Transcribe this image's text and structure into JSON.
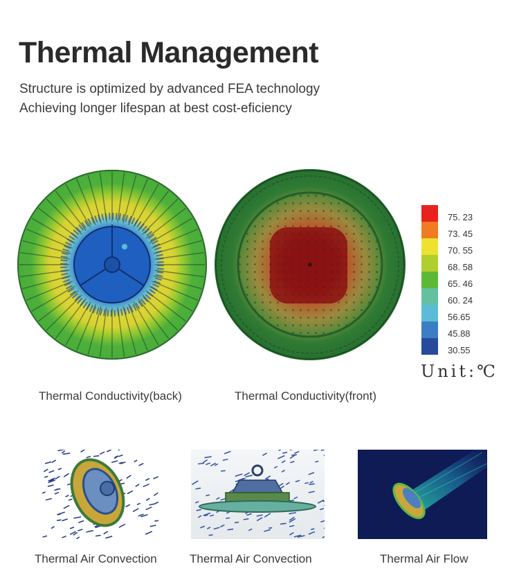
{
  "header": {
    "title": "Thermal Management",
    "subtitle_line1": "Structure is optimized by advanced FEA technology",
    "subtitle_line2": "Achieving longer lifespan at best cost-eficiency"
  },
  "legend": {
    "entries": [
      {
        "label": "75. 23",
        "color": "#e8231e"
      },
      {
        "label": "73. 45",
        "color": "#f27a20"
      },
      {
        "label": "70. 55",
        "color": "#ede22e"
      },
      {
        "label": "68. 58",
        "color": "#b0cf2d"
      },
      {
        "label": "65. 46",
        "color": "#5db838"
      },
      {
        "label": "60. 24",
        "color": "#63c0a0"
      },
      {
        "label": "56.65",
        "color": "#5cbcd8"
      },
      {
        "label": "45.88",
        "color": "#3b7ec6"
      },
      {
        "label": "30.55",
        "color": "#274b9c"
      }
    ],
    "unit": "Unit:℃"
  },
  "captions": {
    "back": "Thermal Conductivity(back)",
    "front": "Thermal Conductivity(front)",
    "convection1": "Thermal Air Convection",
    "convection2": "Thermal Air Convection",
    "flow": "Thermal Air Flow"
  }
}
